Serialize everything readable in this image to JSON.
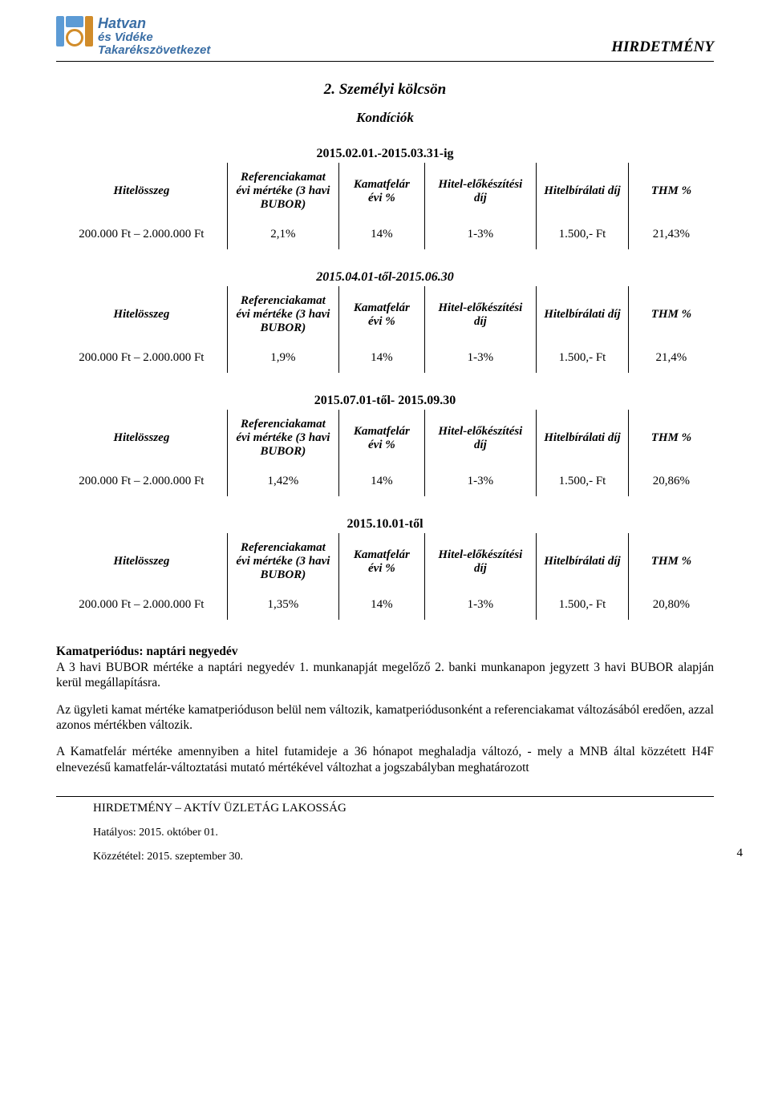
{
  "logo": {
    "line1": "Hatvan",
    "line2": "és Vidéke",
    "line3": "Takarékszövetkezet"
  },
  "header_title": "HIRDETMÉNY",
  "section_title": "2. Személyi kölcsön",
  "subsection": "Kondíciók",
  "col_headers": {
    "amount": "Hitelösszeg",
    "ref": "Referenciakamat évi mértéke (3 havi BUBOR)",
    "kf": "Kamatfelár évi %",
    "prep": "Hitel-előkészítési díj",
    "appr": "Hitelbírálati díj",
    "thm": "THM %"
  },
  "tables": [
    {
      "period": "2015.02.01.-2015.03.31-ig",
      "row": {
        "amount": "200.000 Ft – 2.000.000 Ft",
        "ref": "2,1%",
        "kf": "14%",
        "prep": "1-3%",
        "appr": "1.500,- Ft",
        "thm": "21,43%"
      }
    },
    {
      "period": "2015.04.01-től-2015.06.30",
      "row": {
        "amount": "200.000 Ft – 2.000.000 Ft",
        "ref": "1,9%",
        "kf": "14%",
        "prep": "1-3%",
        "appr": "1.500,- Ft",
        "thm": "21,4%"
      }
    },
    {
      "period": "2015.07.01-től- 2015.09.30",
      "row": {
        "amount": "200.000 Ft – 2.000.000 Ft",
        "ref": "1,42%",
        "kf": "14%",
        "prep": "1-3%",
        "appr": "1.500,- Ft",
        "thm": "20,86%"
      }
    },
    {
      "period": "2015.10.01-től",
      "row": {
        "amount": "200.000 Ft – 2.000.000 Ft",
        "ref": "1,35%",
        "kf": "14%",
        "prep": "1-3%",
        "appr": "1.500,- Ft",
        "thm": "20,80%"
      }
    }
  ],
  "paragraphs": {
    "p1_lead": "Kamatperiódus: naptári negyedév",
    "p1_rest": "A 3 havi BUBOR mértéke a naptári negyedév 1. munkanapját megelőző 2. banki munkanapon jegyzett 3 havi BUBOR alapján kerül megállapításra.",
    "p2": "Az ügyleti kamat mértéke kamatperióduson belül nem változik, kamatperiódusonként a referenciakamat változásából eredően, azzal azonos mértékben változik.",
    "p3": "A Kamatfelár mértéke amennyiben a hitel futamideje a 36 hónapot meghaladja változó, - mely a MNB által közzétett H4F elnevezésű kamatfelár-változtatási mutató mértékével változhat a jogszabályban meghatározott"
  },
  "footer": {
    "line1": "HIRDETMÉNY – AKTÍV ÜZLETÁG          LAKOSSÁG",
    "line2": "Hatályos: 2015. október 01.",
    "line3": "Közzététel: 2015. szeptember 30."
  },
  "page_number": "4"
}
